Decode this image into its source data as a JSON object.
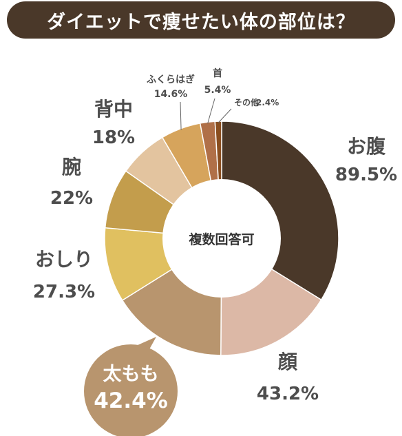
{
  "title": "ダイエットで痩せたい体の部位は？",
  "chart_data": {
    "type": "pie",
    "title": "ダイエットで痩せたい体の部位は？",
    "center_label": "複数回答可",
    "value_suffix": "%",
    "slices": [
      {
        "label": "お腹",
        "value": 89.5,
        "value_text": "89.5%",
        "color": "#4a3829"
      },
      {
        "label": "顔",
        "value": 43.2,
        "value_text": "43.2%",
        "color": "#dcb8a6"
      },
      {
        "label": "太もも",
        "value": 42.4,
        "value_text": "42.4%",
        "color": "#b8956e",
        "highlighted": true
      },
      {
        "label": "おしり",
        "value": 27.3,
        "value_text": "27.3%",
        "color": "#e0c060"
      },
      {
        "label": "腕",
        "value": 22,
        "value_text": "22%",
        "color": "#c39d4c"
      },
      {
        "label": "背中",
        "value": 18,
        "value_text": "18%",
        "color": "#e3c49f"
      },
      {
        "label": "ふくらはぎ",
        "value": 14.6,
        "value_text": "14.6%",
        "color": "#d6a45c"
      },
      {
        "label": "首",
        "value": 5.4,
        "value_text": "5.4%",
        "color": "#b07048"
      },
      {
        "label": "その他",
        "value": 2.4,
        "value_text": "2.4%",
        "color": "#8a4e1f"
      }
    ]
  }
}
